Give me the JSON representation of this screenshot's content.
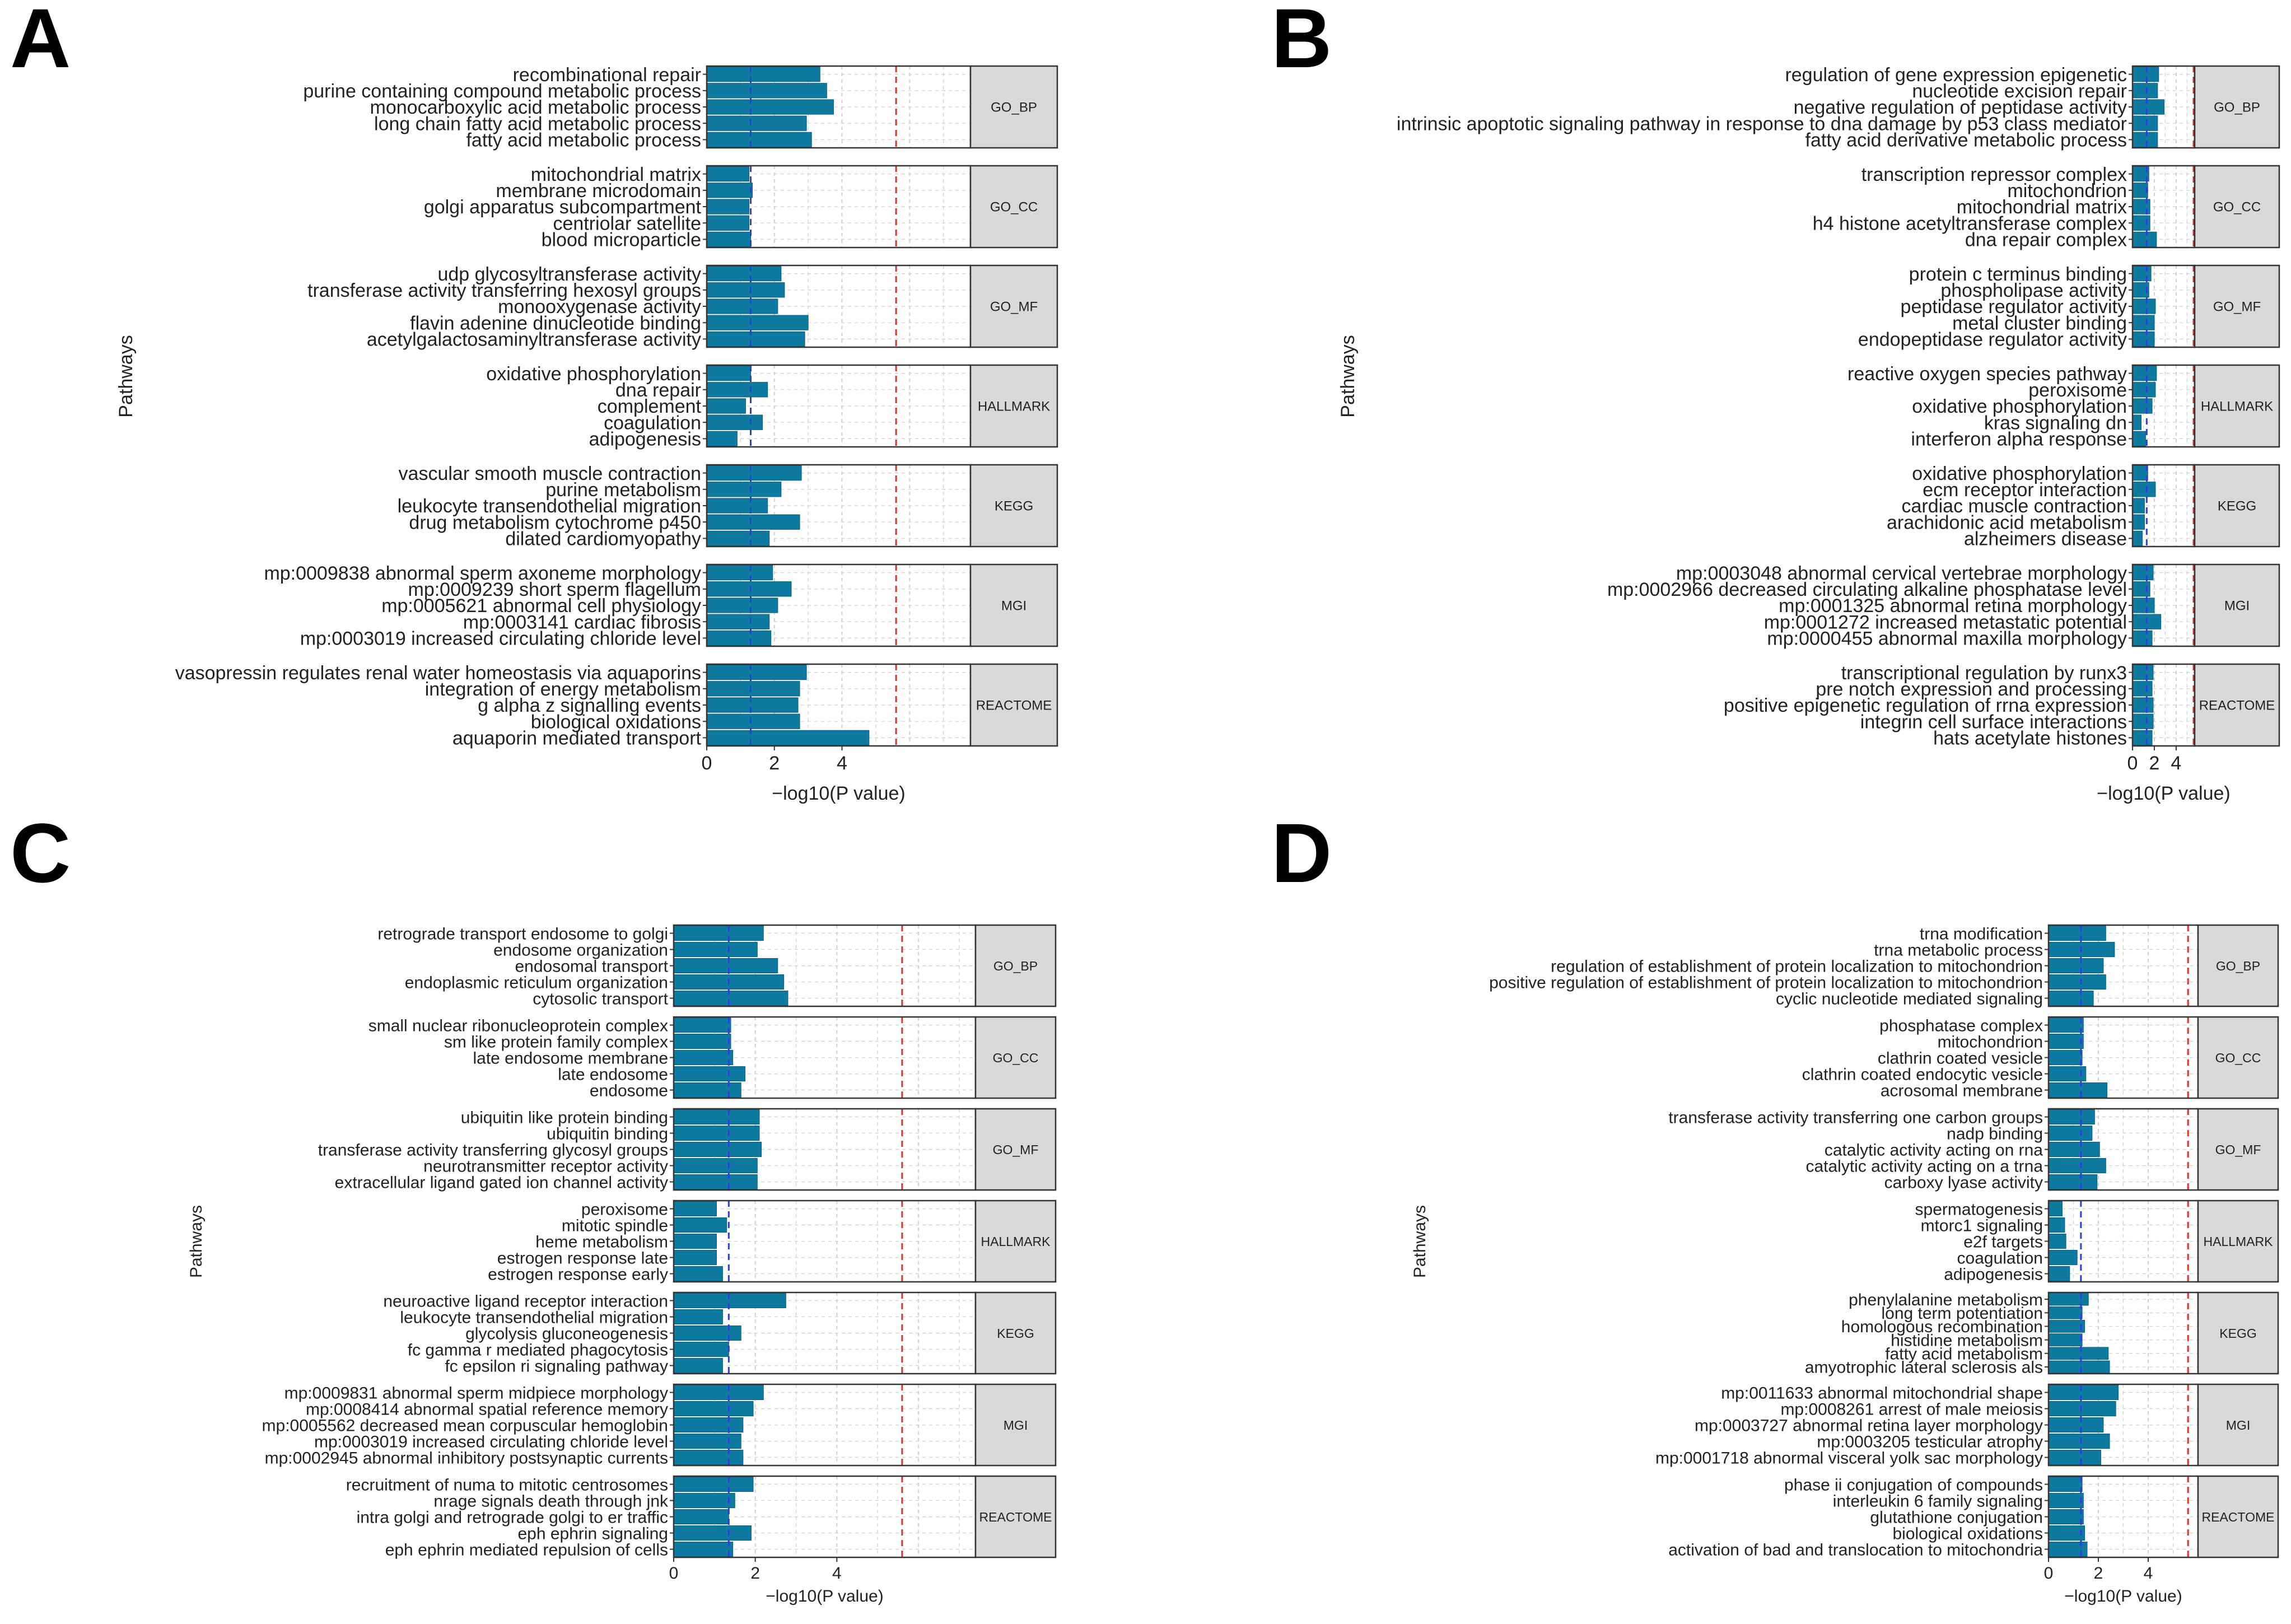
{
  "figure": {
    "colors": {
      "bar": "#0f7aa0",
      "bar_stroke": "#0b5d7a",
      "grid": "#cfcfcf",
      "strip_fill": "#d9d9d9",
      "threshold_blue": "#2b3fe0",
      "threshold_red": "#e0312b"
    }
  },
  "chart_data": [
    {
      "type": "bar",
      "orientation": "horizontal",
      "panel_label": "A",
      "ylabel": "Pathways",
      "xlabel": "−log10(P value)",
      "xlim": [
        0,
        7.8
      ],
      "xticks": [
        0,
        2,
        4
      ],
      "blue_threshold": 1.3,
      "red_threshold": 5.6,
      "groups": [
        {
          "name": "GO_BP",
          "items": [
            {
              "label": "recombinational repair",
              "value": 3.35
            },
            {
              "label": "purine containing compound metabolic process",
              "value": 3.55
            },
            {
              "label": "monocarboxylic acid metabolic process",
              "value": 3.75
            },
            {
              "label": "long chain fatty acid metabolic process",
              "value": 2.95
            },
            {
              "label": "fatty acid metabolic process",
              "value": 3.1
            }
          ]
        },
        {
          "name": "GO_CC",
          "items": [
            {
              "label": "mitochondrial matrix",
              "value": 1.25
            },
            {
              "label": "membrane microdomain",
              "value": 1.35
            },
            {
              "label": "golgi apparatus subcompartment",
              "value": 1.25
            },
            {
              "label": "centriolar satellite",
              "value": 1.25
            },
            {
              "label": "blood microparticle",
              "value": 1.3
            }
          ]
        },
        {
          "name": "GO_MF",
          "items": [
            {
              "label": "udp glycosyltransferase activity",
              "value": 2.2
            },
            {
              "label": "transferase activity transferring hexosyl groups",
              "value": 2.3
            },
            {
              "label": "monooxygenase activity",
              "value": 2.1
            },
            {
              "label": "flavin adenine dinucleotide binding",
              "value": 3.0
            },
            {
              "label": "acetylgalactosaminyltransferase activity",
              "value": 2.9
            }
          ]
        },
        {
          "name": "HALLMARK",
          "items": [
            {
              "label": "oxidative phosphorylation",
              "value": 1.3
            },
            {
              "label": "dna repair",
              "value": 1.8
            },
            {
              "label": "complement",
              "value": 1.15
            },
            {
              "label": "coagulation",
              "value": 1.65
            },
            {
              "label": "adipogenesis",
              "value": 0.9
            }
          ]
        },
        {
          "name": "KEGG",
          "items": [
            {
              "label": "vascular smooth muscle contraction",
              "value": 2.8
            },
            {
              "label": "purine metabolism",
              "value": 2.2
            },
            {
              "label": "leukocyte transendothelial migration",
              "value": 1.8
            },
            {
              "label": "drug metabolism cytochrome p450",
              "value": 2.75
            },
            {
              "label": "dilated cardiomyopathy",
              "value": 1.85
            }
          ]
        },
        {
          "name": "MGI",
          "items": [
            {
              "label": "mp:0009838 abnormal sperm axoneme morphology",
              "value": 1.95
            },
            {
              "label": "mp:0009239 short sperm flagellum",
              "value": 2.5
            },
            {
              "label": "mp:0005621 abnormal cell physiology",
              "value": 2.1
            },
            {
              "label": "mp:0003141 cardiac fibrosis",
              "value": 1.85
            },
            {
              "label": "mp:0003019 increased circulating chloride level",
              "value": 1.9
            }
          ]
        },
        {
          "name": "REACTOME",
          "items": [
            {
              "label": "vasopressin regulates renal water homeostasis via aquaporins",
              "value": 2.95
            },
            {
              "label": "integration of energy metabolism",
              "value": 2.75
            },
            {
              "label": "g alpha z signalling events",
              "value": 2.7
            },
            {
              "label": "biological oxidations",
              "value": 2.75
            },
            {
              "label": "aquaporin mediated transport",
              "value": 4.8
            }
          ]
        }
      ]
    },
    {
      "type": "bar",
      "orientation": "horizontal",
      "panel_label": "B",
      "ylabel": "Pathways",
      "xlabel": "−log10(P value)",
      "xlim": [
        0,
        5.7
      ],
      "xticks": [
        0,
        2,
        4
      ],
      "blue_threshold": 1.3,
      "red_threshold": 5.6,
      "groups": [
        {
          "name": "GO_BP",
          "items": [
            {
              "label": "regulation of gene expression epigenetic",
              "value": 2.4
            },
            {
              "label": "nucleotide excision repair",
              "value": 2.3
            },
            {
              "label": "negative regulation of peptidase activity",
              "value": 2.9
            },
            {
              "label": "intrinsic apoptotic signaling pathway in response to dna damage by p53 class mediator",
              "value": 2.3
            },
            {
              "label": "fatty acid derivative metabolic process",
              "value": 2.3
            }
          ]
        },
        {
          "name": "GO_CC",
          "items": [
            {
              "label": "transcription repressor complex",
              "value": 1.5
            },
            {
              "label": "mitochondrion",
              "value": 1.4
            },
            {
              "label": "mitochondrial matrix",
              "value": 1.6
            },
            {
              "label": "h4 histone acetyltransferase complex",
              "value": 1.6
            },
            {
              "label": "dna repair complex",
              "value": 2.2
            }
          ]
        },
        {
          "name": "GO_MF",
          "items": [
            {
              "label": "protein c terminus binding",
              "value": 1.7
            },
            {
              "label": "phospholipase activity",
              "value": 1.5
            },
            {
              "label": "peptidase regulator activity",
              "value": 2.1
            },
            {
              "label": "metal cluster binding",
              "value": 2.0
            },
            {
              "label": "endopeptidase regulator activity",
              "value": 2.0
            }
          ]
        },
        {
          "name": "HALLMARK",
          "items": [
            {
              "label": "reactive oxygen species pathway",
              "value": 2.2
            },
            {
              "label": "peroxisome",
              "value": 2.1
            },
            {
              "label": "oxidative phosphorylation",
              "value": 1.8
            },
            {
              "label": "kras signaling dn",
              "value": 0.8
            },
            {
              "label": "interferon alpha response",
              "value": 1.2
            }
          ]
        },
        {
          "name": "KEGG",
          "items": [
            {
              "label": "oxidative phosphorylation",
              "value": 1.4
            },
            {
              "label": "ecm receptor interaction",
              "value": 2.1
            },
            {
              "label": "cardiac muscle contraction",
              "value": 1.1
            },
            {
              "label": "arachidonic acid metabolism",
              "value": 1.1
            },
            {
              "label": "alzheimers disease",
              "value": 0.9
            }
          ]
        },
        {
          "name": "MGI",
          "items": [
            {
              "label": "mp:0003048 abnormal cervical vertebrae morphology",
              "value": 1.9
            },
            {
              "label": "mp:0002966 decreased circulating alkaline phosphatase level",
              "value": 1.6
            },
            {
              "label": "mp:0001325 abnormal retina morphology",
              "value": 2.0
            },
            {
              "label": "mp:0001272 increased metastatic potential",
              "value": 2.6
            },
            {
              "label": "mp:0000455 abnormal maxilla morphology",
              "value": 1.8
            }
          ]
        },
        {
          "name": "REACTOME",
          "items": [
            {
              "label": "transcriptional regulation by runx3",
              "value": 1.9
            },
            {
              "label": "pre notch expression and processing",
              "value": 1.8
            },
            {
              "label": "positive epigenetic regulation of rrna expression",
              "value": 1.9
            },
            {
              "label": "integrin cell surface interactions",
              "value": 1.9
            },
            {
              "label": "hats acetylate histones",
              "value": 1.8
            }
          ]
        }
      ]
    },
    {
      "type": "bar",
      "orientation": "horizontal",
      "panel_label": "C",
      "ylabel": "Pathways",
      "xlabel": "−log10(P value)",
      "xlim": [
        0,
        7.4
      ],
      "xticks": [
        0,
        2,
        4
      ],
      "blue_threshold": 1.35,
      "red_threshold": 5.6,
      "groups": [
        {
          "name": "GO_BP",
          "items": [
            {
              "label": "retrograde transport endosome to golgi",
              "value": 2.2
            },
            {
              "label": "endosome organization",
              "value": 2.05
            },
            {
              "label": "endosomal transport",
              "value": 2.55
            },
            {
              "label": "endoplasmic reticulum organization",
              "value": 2.7
            },
            {
              "label": "cytosolic transport",
              "value": 2.8
            }
          ]
        },
        {
          "name": "GO_CC",
          "items": [
            {
              "label": "small nuclear ribonucleoprotein complex",
              "value": 1.4
            },
            {
              "label": "sm like protein family complex",
              "value": 1.4
            },
            {
              "label": "late endosome membrane",
              "value": 1.45
            },
            {
              "label": "late endosome",
              "value": 1.75
            },
            {
              "label": "endosome",
              "value": 1.65
            }
          ]
        },
        {
          "name": "GO_MF",
          "items": [
            {
              "label": "ubiquitin like protein binding",
              "value": 2.1
            },
            {
              "label": "ubiquitin binding",
              "value": 2.1
            },
            {
              "label": "transferase activity transferring glycosyl groups",
              "value": 2.15
            },
            {
              "label": "neurotransmitter receptor activity",
              "value": 2.05
            },
            {
              "label": "extracellular ligand gated ion channel activity",
              "value": 2.05
            }
          ]
        },
        {
          "name": "HALLMARK",
          "items": [
            {
              "label": "peroxisome",
              "value": 1.05
            },
            {
              "label": "mitotic spindle",
              "value": 1.3
            },
            {
              "label": "heme metabolism",
              "value": 1.05
            },
            {
              "label": "estrogen response late",
              "value": 1.05
            },
            {
              "label": "estrogen response early",
              "value": 1.2
            }
          ]
        },
        {
          "name": "KEGG",
          "items": [
            {
              "label": "neuroactive ligand receptor interaction",
              "value": 2.75
            },
            {
              "label": "leukocyte transendothelial migration",
              "value": 1.2
            },
            {
              "label": "glycolysis gluconeogenesis",
              "value": 1.65
            },
            {
              "label": "fc gamma r mediated phagocytosis",
              "value": 1.35
            },
            {
              "label": "fc epsilon ri signaling pathway",
              "value": 1.2
            }
          ]
        },
        {
          "name": "MGI",
          "items": [
            {
              "label": "mp:0009831 abnormal sperm midpiece morphology",
              "value": 2.2
            },
            {
              "label": "mp:0008414 abnormal spatial reference memory",
              "value": 1.95
            },
            {
              "label": "mp:0005562 decreased mean corpuscular hemoglobin",
              "value": 1.7
            },
            {
              "label": "mp:0003019 increased circulating chloride level",
              "value": 1.65
            },
            {
              "label": "mp:0002945 abnormal inhibitory postsynaptic currents",
              "value": 1.7
            }
          ]
        },
        {
          "name": "REACTOME",
          "items": [
            {
              "label": "recruitment of numa to mitotic centrosomes",
              "value": 1.95
            },
            {
              "label": "nrage signals death through jnk",
              "value": 1.5
            },
            {
              "label": "intra golgi and retrograde golgi to er traffic",
              "value": 1.35
            },
            {
              "label": "eph ephrin signaling",
              "value": 1.9
            },
            {
              "label": "eph ephrin mediated repulsion of cells",
              "value": 1.45
            }
          ]
        }
      ]
    },
    {
      "type": "bar",
      "orientation": "horizontal",
      "panel_label": "D",
      "ylabel": "Pathways",
      "xlabel": "−log10(P value)",
      "xlim": [
        0,
        6.0
      ],
      "xticks": [
        0,
        2,
        4
      ],
      "blue_threshold": 1.3,
      "red_threshold": 5.6,
      "groups": [
        {
          "name": "GO_BP",
          "items": [
            {
              "label": "trna modification",
              "value": 2.3
            },
            {
              "label": "trna metabolic process",
              "value": 2.65
            },
            {
              "label": "regulation of establishment of protein localization to mitochondrion",
              "value": 2.2
            },
            {
              "label": "positive regulation of establishment of protein localization to mitochondrion",
              "value": 2.3
            },
            {
              "label": "cyclic nucleotide mediated signaling",
              "value": 1.8
            }
          ]
        },
        {
          "name": "GO_CC",
          "items": [
            {
              "label": "phosphatase complex",
              "value": 1.4
            },
            {
              "label": "mitochondrion",
              "value": 1.4
            },
            {
              "label": "clathrin coated vesicle",
              "value": 1.35
            },
            {
              "label": "clathrin coated endocytic vesicle",
              "value": 1.5
            },
            {
              "label": "acrosomal membrane",
              "value": 2.35
            }
          ]
        },
        {
          "name": "GO_MF",
          "items": [
            {
              "label": "transferase activity transferring one carbon groups",
              "value": 1.85
            },
            {
              "label": "nadp binding",
              "value": 1.75
            },
            {
              "label": "catalytic activity acting on rna",
              "value": 2.05
            },
            {
              "label": "catalytic activity acting on a trna",
              "value": 2.3
            },
            {
              "label": "carboxy lyase activity",
              "value": 1.95
            }
          ]
        },
        {
          "name": "HALLMARK",
          "items": [
            {
              "label": "spermatogenesis",
              "value": 0.55
            },
            {
              "label": "mtorc1 signaling",
              "value": 0.65
            },
            {
              "label": "e2f targets",
              "value": 0.7
            },
            {
              "label": "coagulation",
              "value": 1.15
            },
            {
              "label": "adipogenesis",
              "value": 0.85
            }
          ]
        },
        {
          "name": "KEGG",
          "items": [
            {
              "label": "phenylalanine metabolism",
              "value": 1.6
            },
            {
              "label": "long term potentiation",
              "value": 1.35
            },
            {
              "label": "homologous recombination",
              "value": 1.45
            },
            {
              "label": "histidine metabolism",
              "value": 1.35
            },
            {
              "label": "fatty acid metabolism",
              "value": 2.4
            },
            {
              "label": "amyotrophic lateral sclerosis als",
              "value": 2.45
            }
          ]
        },
        {
          "name": "MGI",
          "items": [
            {
              "label": "mp:0011633 abnormal mitochondrial shape",
              "value": 2.8
            },
            {
              "label": "mp:0008261 arrest of male meiosis",
              "value": 2.7
            },
            {
              "label": "mp:0003727 abnormal retina layer morphology",
              "value": 2.2
            },
            {
              "label": "mp:0003205 testicular atrophy",
              "value": 2.45
            },
            {
              "label": "mp:0001718 abnormal visceral yolk sac morphology",
              "value": 2.1
            }
          ]
        },
        {
          "name": "REACTOME",
          "items": [
            {
              "label": "phase ii conjugation of compounds",
              "value": 1.35
            },
            {
              "label": "interleukin 6 family signaling",
              "value": 1.4
            },
            {
              "label": "glutathione conjugation",
              "value": 1.4
            },
            {
              "label": "biological oxidations",
              "value": 1.45
            },
            {
              "label": "activation of bad and translocation to mitochondria",
              "value": 1.55
            }
          ]
        }
      ]
    }
  ]
}
